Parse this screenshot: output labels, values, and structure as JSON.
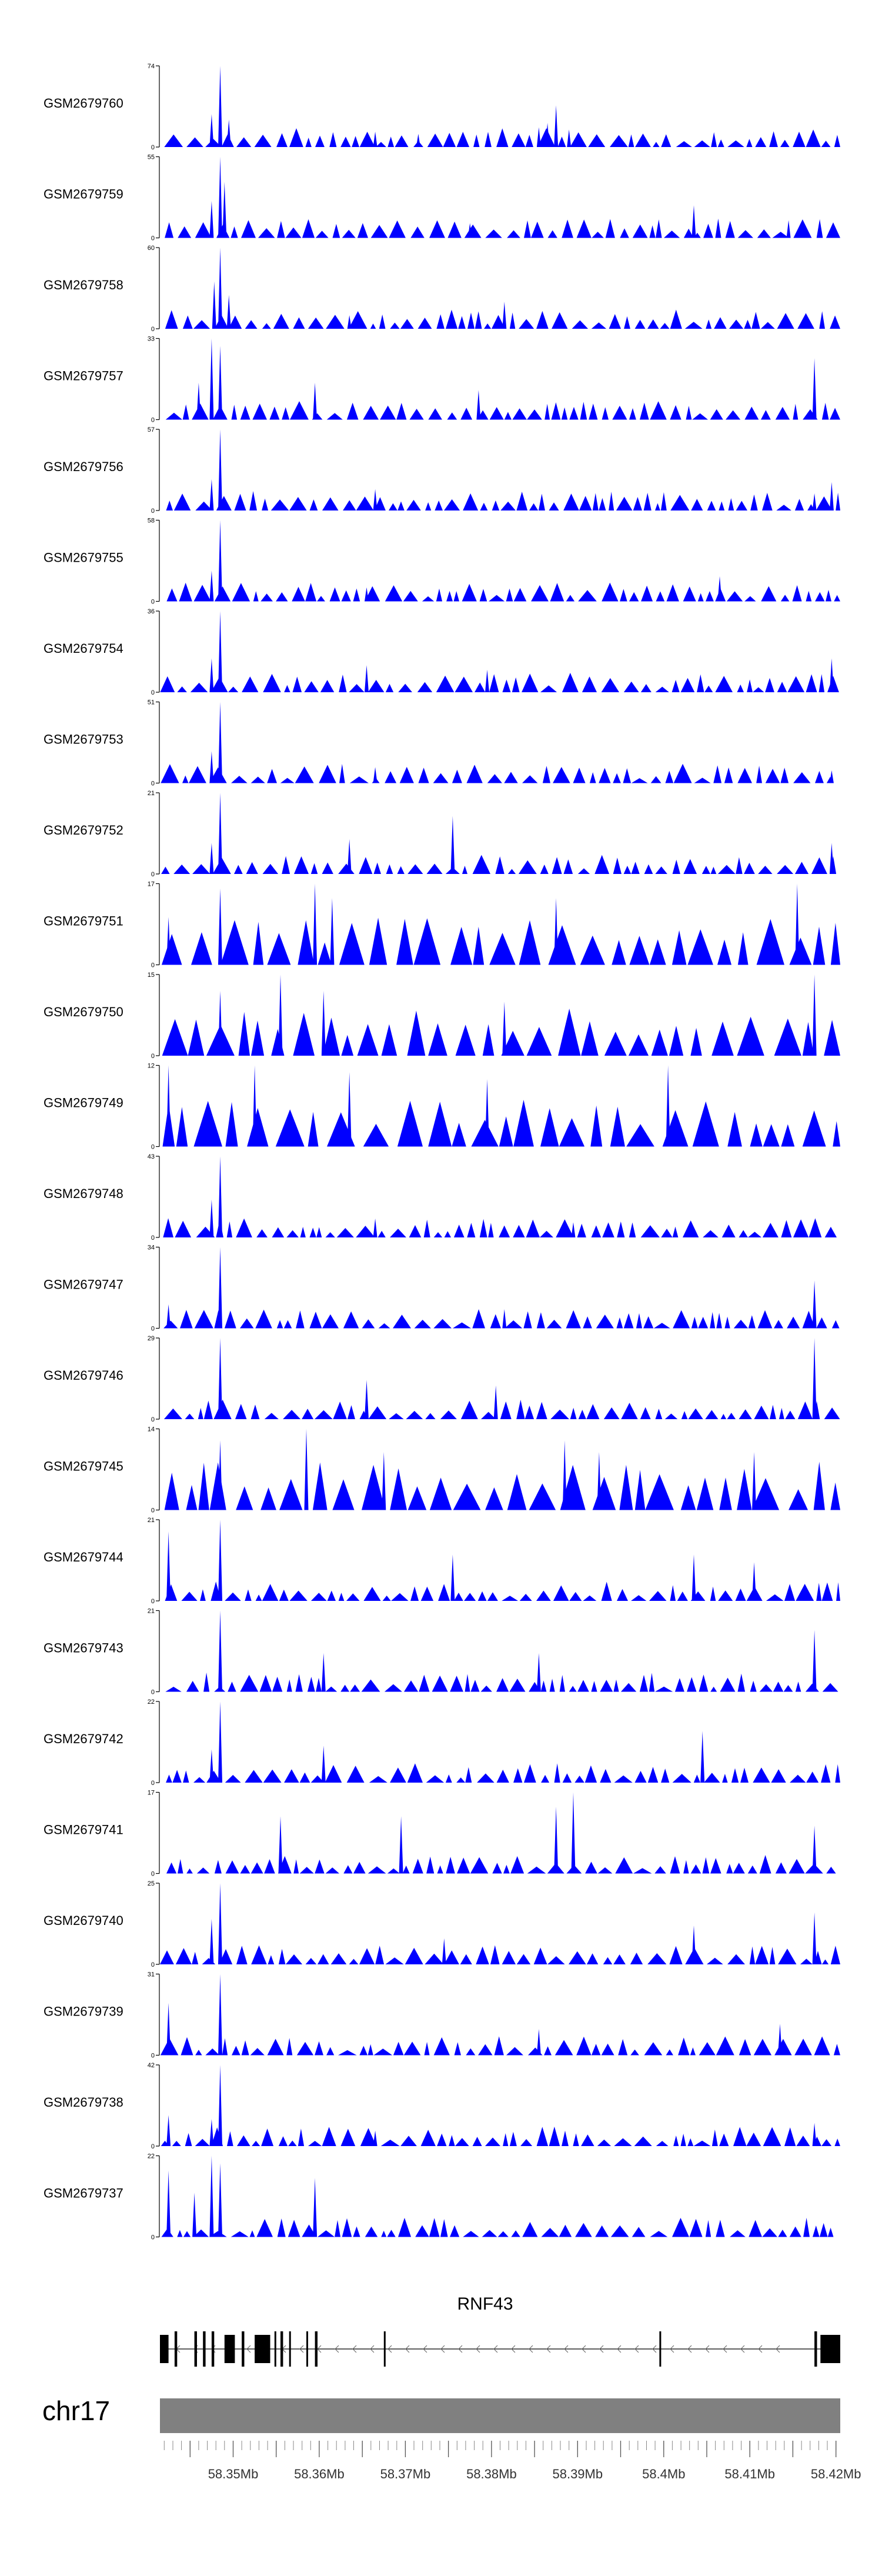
{
  "chart_data": {
    "type": "area",
    "title": "",
    "chromosome": "chr17",
    "x_range_mb": [
      58.3415,
      58.4205
    ],
    "color": "#0000ff",
    "tracks": [
      {
        "label": "GSM2679760",
        "ymax": "74",
        "peaks": [
          [
            58.3485,
            74
          ],
          [
            58.3475,
            30
          ],
          [
            58.3495,
            25
          ],
          [
            58.3875,
            38
          ],
          [
            58.3865,
            22
          ],
          [
            58.3855,
            18
          ],
          [
            58.389,
            16
          ],
          [
            58.3665,
            14
          ],
          [
            58.3715,
            12
          ]
        ]
      },
      {
        "label": "GSM2679759",
        "ymax": "55",
        "peaks": [
          [
            58.3485,
            55
          ],
          [
            58.349,
            38
          ],
          [
            58.3475,
            25
          ],
          [
            58.4035,
            22
          ],
          [
            58.4145,
            12
          ],
          [
            58.3775,
            10
          ]
        ]
      },
      {
        "label": "GSM2679758",
        "ymax": "60",
        "peaks": [
          [
            58.3485,
            60
          ],
          [
            58.3478,
            35
          ],
          [
            58.3495,
            25
          ],
          [
            58.3815,
            20
          ],
          [
            58.3635,
            10
          ]
        ]
      },
      {
        "label": "GSM2679757",
        "ymax": "33",
        "peaks": [
          [
            58.3475,
            33
          ],
          [
            58.3485,
            30
          ],
          [
            58.346,
            15
          ],
          [
            58.3595,
            15
          ],
          [
            58.4175,
            25
          ],
          [
            58.3785,
            12
          ]
        ]
      },
      {
        "label": "GSM2679756",
        "ymax": "57",
        "peaks": [
          [
            58.3485,
            57
          ],
          [
            58.3475,
            22
          ],
          [
            58.3665,
            15
          ],
          [
            58.4195,
            20
          ],
          [
            58.4175,
            12
          ]
        ]
      },
      {
        "label": "GSM2679755",
        "ymax": "58",
        "peaks": [
          [
            58.3485,
            58
          ],
          [
            58.3475,
            22
          ],
          [
            58.4065,
            18
          ],
          [
            58.3655,
            10
          ]
        ]
      },
      {
        "label": "GSM2679754",
        "ymax": "36",
        "peaks": [
          [
            58.3485,
            36
          ],
          [
            58.3475,
            15
          ],
          [
            58.4195,
            15
          ],
          [
            58.3655,
            12
          ],
          [
            58.3795,
            10
          ]
        ]
      },
      {
        "label": "GSM2679753",
        "ymax": "51",
        "peaks": [
          [
            58.3485,
            51
          ],
          [
            58.3475,
            20
          ],
          [
            58.3665,
            10
          ],
          [
            58.4195,
            8
          ]
        ]
      },
      {
        "label": "GSM2679752",
        "ymax": "21",
        "peaks": [
          [
            58.3485,
            21
          ],
          [
            58.3755,
            15
          ],
          [
            58.3475,
            8
          ],
          [
            58.3635,
            9
          ],
          [
            58.4195,
            8
          ]
        ]
      },
      {
        "label": "GSM2679751",
        "ymax": "17",
        "peaks": [
          [
            58.3595,
            17
          ],
          [
            58.4155,
            17
          ],
          [
            58.3485,
            16
          ],
          [
            58.3875,
            14
          ],
          [
            58.3615,
            14
          ],
          [
            58.3425,
            10
          ]
        ]
      },
      {
        "label": "GSM2679750",
        "ymax": "15",
        "peaks": [
          [
            58.3555,
            15
          ],
          [
            58.4175,
            15
          ],
          [
            58.3485,
            12
          ],
          [
            58.3605,
            12
          ],
          [
            58.3815,
            10
          ]
        ]
      },
      {
        "label": "GSM2679749",
        "ymax": "12",
        "peaks": [
          [
            58.3425,
            12
          ],
          [
            58.3525,
            12
          ],
          [
            58.4005,
            12
          ],
          [
            58.3635,
            11
          ],
          [
            58.3795,
            10
          ]
        ]
      },
      {
        "label": "GSM2679748",
        "ymax": "43",
        "peaks": [
          [
            58.3485,
            43
          ],
          [
            58.3475,
            20
          ],
          [
            58.3665,
            10
          ],
          [
            58.3895,
            8
          ]
        ]
      },
      {
        "label": "GSM2679747",
        "ymax": "34",
        "peaks": [
          [
            58.3485,
            34
          ],
          [
            58.4175,
            20
          ],
          [
            58.3425,
            10
          ],
          [
            58.3815,
            8
          ]
        ]
      },
      {
        "label": "GSM2679746",
        "ymax": "29",
        "peaks": [
          [
            58.3485,
            29
          ],
          [
            58.4175,
            29
          ],
          [
            58.3655,
            14
          ],
          [
            58.3805,
            12
          ]
        ]
      },
      {
        "label": "GSM2679745",
        "ymax": "14",
        "peaks": [
          [
            58.3585,
            14
          ],
          [
            58.3485,
            12
          ],
          [
            58.3885,
            12
          ],
          [
            58.3675,
            10
          ],
          [
            58.3925,
            10
          ],
          [
            58.4105,
            10
          ]
        ]
      },
      {
        "label": "GSM2679744",
        "ymax": "21",
        "peaks": [
          [
            58.3485,
            21
          ],
          [
            58.3425,
            18
          ],
          [
            58.3755,
            12
          ],
          [
            58.4035,
            12
          ],
          [
            58.4105,
            10
          ]
        ]
      },
      {
        "label": "GSM2679743",
        "ymax": "21",
        "peaks": [
          [
            58.3485,
            21
          ],
          [
            58.4175,
            16
          ],
          [
            58.3605,
            10
          ],
          [
            58.3855,
            10
          ]
        ]
      },
      {
        "label": "GSM2679742",
        "ymax": "22",
        "peaks": [
          [
            58.3485,
            22
          ],
          [
            58.4045,
            14
          ],
          [
            58.3605,
            10
          ],
          [
            58.3475,
            9
          ]
        ]
      },
      {
        "label": "GSM2679741",
        "ymax": "17",
        "peaks": [
          [
            58.3895,
            17
          ],
          [
            58.3555,
            12
          ],
          [
            58.3695,
            12
          ],
          [
            58.3875,
            14
          ],
          [
            58.4175,
            10
          ]
        ]
      },
      {
        "label": "GSM2679740",
        "ymax": "25",
        "peaks": [
          [
            58.3485,
            25
          ],
          [
            58.4175,
            16
          ],
          [
            58.4035,
            12
          ],
          [
            58.3475,
            14
          ],
          [
            58.3745,
            8
          ]
        ]
      },
      {
        "label": "GSM2679739",
        "ymax": "31",
        "peaks": [
          [
            58.3485,
            31
          ],
          [
            58.3425,
            20
          ],
          [
            58.4135,
            12
          ],
          [
            58.3855,
            10
          ]
        ]
      },
      {
        "label": "GSM2679738",
        "ymax": "42",
        "peaks": [
          [
            58.3485,
            42
          ],
          [
            58.3425,
            16
          ],
          [
            58.4175,
            12
          ],
          [
            58.3475,
            14
          ],
          [
            58.3665,
            8
          ]
        ]
      },
      {
        "label": "GSM2679737",
        "ymax": "22",
        "peaks": [
          [
            58.3475,
            22
          ],
          [
            58.3485,
            20
          ],
          [
            58.3425,
            18
          ],
          [
            58.3595,
            16
          ],
          [
            58.3455,
            12
          ]
        ]
      }
    ],
    "gene": {
      "name": "RNF43",
      "start_mb": 58.3415,
      "end_mb": 58.4205,
      "strand": "-"
    },
    "exons_mb": [
      [
        58.3415,
        58.3425
      ],
      [
        58.3432,
        58.3435
      ],
      [
        58.3455,
        58.3458
      ],
      [
        58.3465,
        58.3468
      ],
      [
        58.3475,
        58.3478
      ],
      [
        58.349,
        58.3502
      ],
      [
        58.351,
        58.3513
      ],
      [
        58.3525,
        58.3543
      ],
      [
        58.3548,
        58.355
      ],
      [
        58.3555,
        58.3558
      ],
      [
        58.3565,
        58.3567
      ],
      [
        58.3585,
        58.3587
      ],
      [
        58.3595,
        58.3598
      ],
      [
        58.3675,
        58.3677
      ],
      [
        58.3995,
        58.3997
      ],
      [
        58.4175,
        58.4178
      ],
      [
        58.4182,
        58.4205
      ]
    ],
    "axis": {
      "ticks": [
        58.345,
        58.35,
        58.355,
        58.36,
        58.365,
        58.37,
        58.375,
        58.38,
        58.385,
        58.39,
        58.395,
        58.4,
        58.405,
        58.41,
        58.415,
        58.42
      ],
      "labels": [
        "58.35Mb",
        "58.36Mb",
        "58.37Mb",
        "58.38Mb",
        "58.39Mb",
        "58.4Mb",
        "58.41Mb",
        "58.42Mb"
      ],
      "label_positions_mb": [
        58.35,
        58.36,
        58.37,
        58.38,
        58.39,
        58.4,
        58.41,
        58.42
      ]
    }
  }
}
